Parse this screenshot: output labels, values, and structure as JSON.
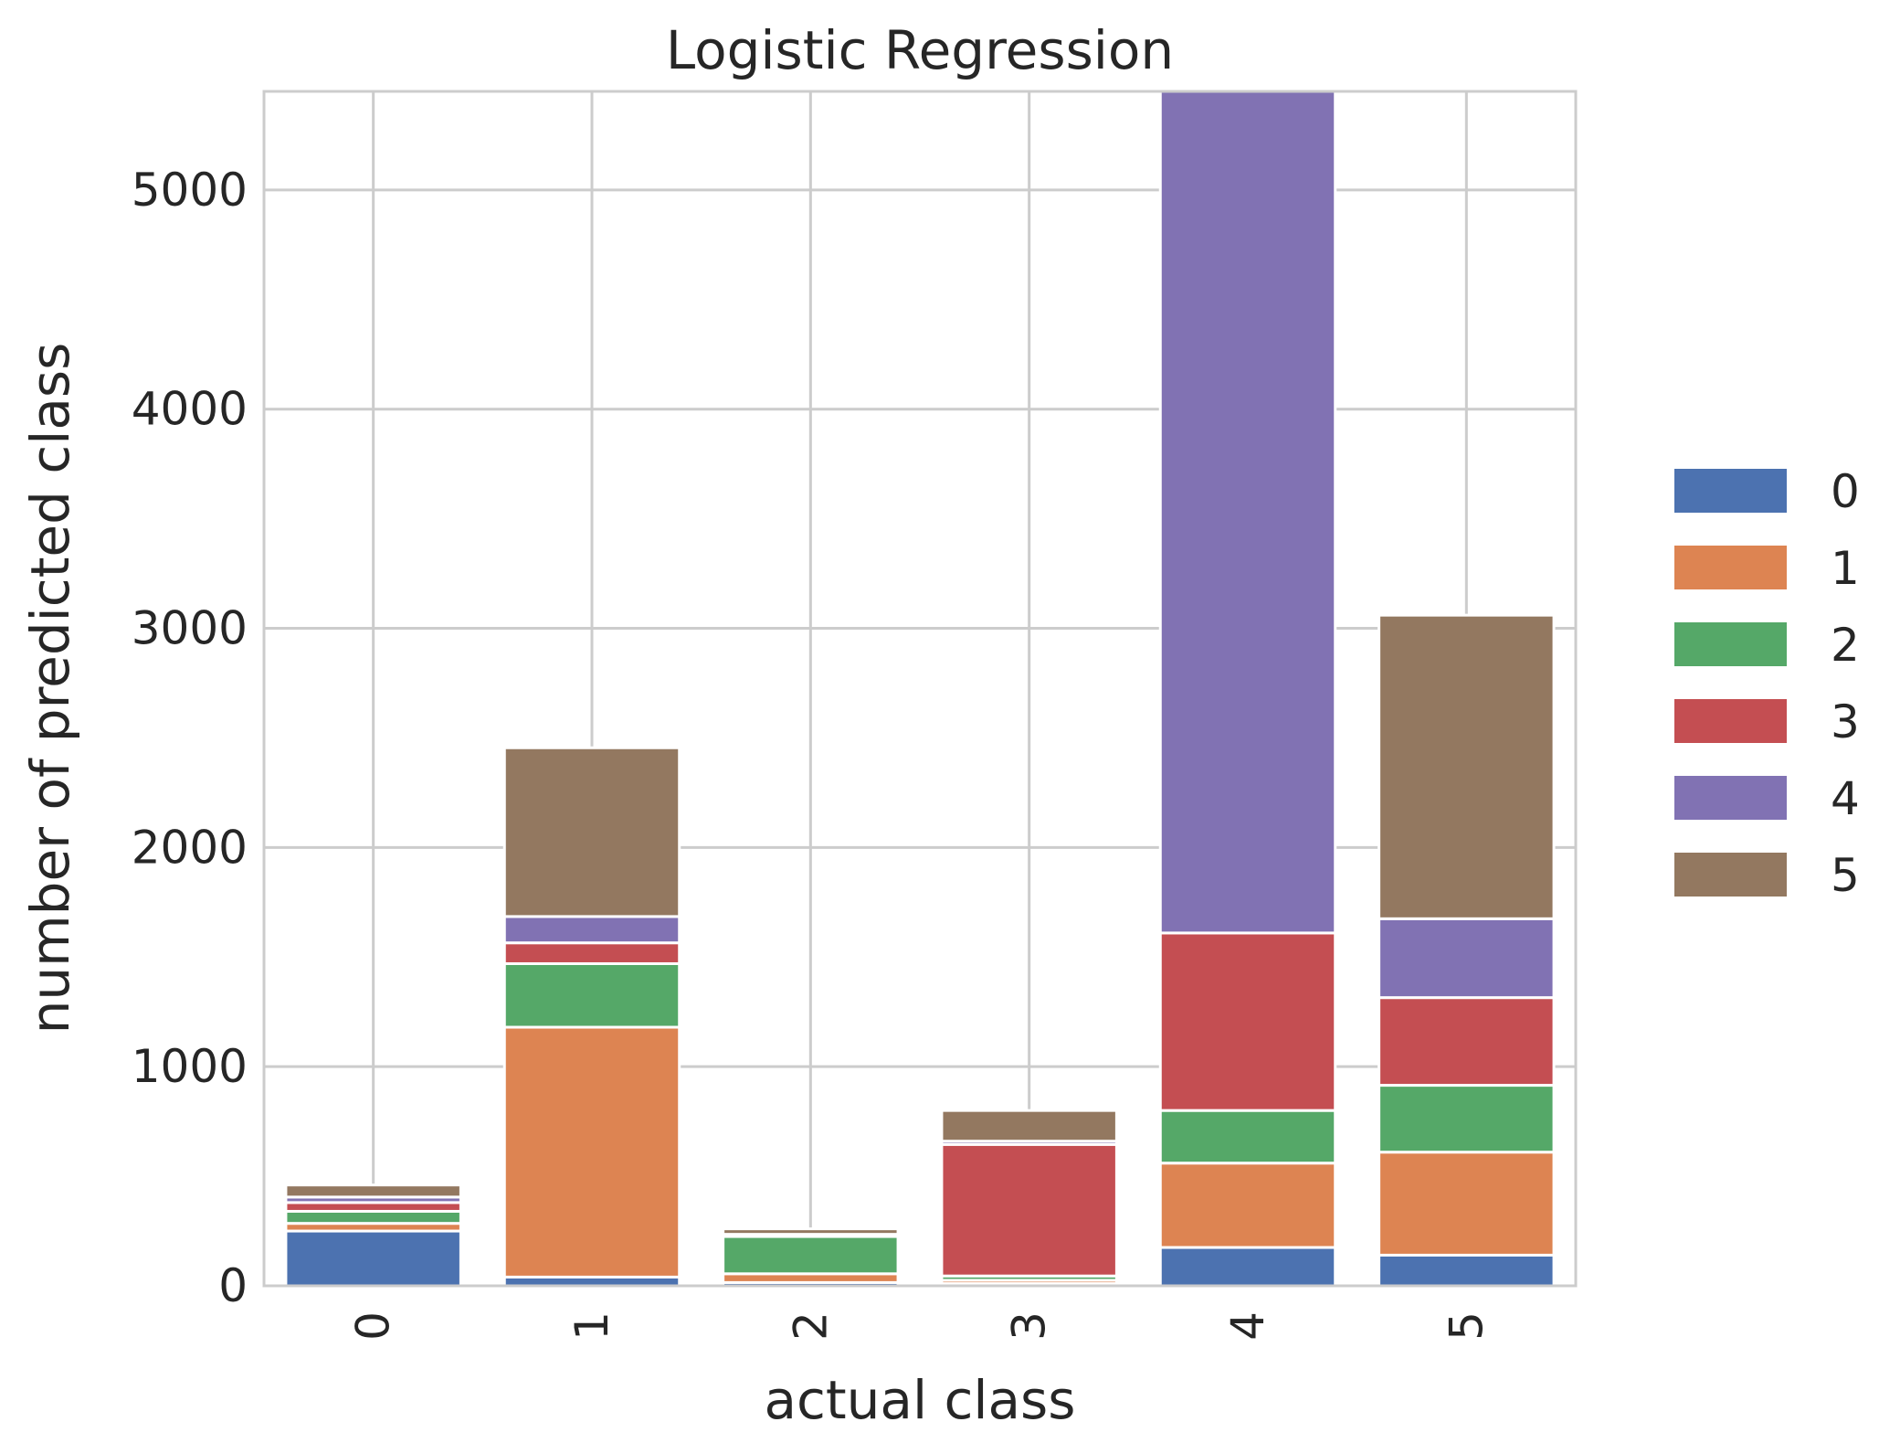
{
  "chart_data": {
    "type": "bar",
    "stacked": true,
    "title": "Logistic Regression",
    "xlabel": "actual class",
    "ylabel": "number of predicted class",
    "categories": [
      "0",
      "1",
      "2",
      "3",
      "4",
      "5"
    ],
    "ylim": [
      0,
      5450
    ],
    "yticks": [
      0,
      1000,
      2000,
      3000,
      4000,
      5000
    ],
    "grid": true,
    "legend_position": "right",
    "series": [
      {
        "name": "0",
        "color": "#4c72b0",
        "values": [
          250,
          40,
          15,
          10,
          175,
          140
        ]
      },
      {
        "name": "1",
        "color": "#dd8452",
        "values": [
          35,
          1140,
          40,
          15,
          385,
          470
        ]
      },
      {
        "name": "2",
        "color": "#55a868",
        "values": [
          55,
          290,
          170,
          20,
          240,
          305
        ]
      },
      {
        "name": "3",
        "color": "#c44e52",
        "values": [
          40,
          95,
          5,
          600,
          810,
          400
        ]
      },
      {
        "name": "4",
        "color": "#8172b3",
        "values": [
          25,
          120,
          5,
          15,
          3850,
          360
        ]
      },
      {
        "name": "5",
        "color": "#937860",
        "values": [
          55,
          770,
          25,
          140,
          0,
          1385
        ]
      }
    ]
  }
}
